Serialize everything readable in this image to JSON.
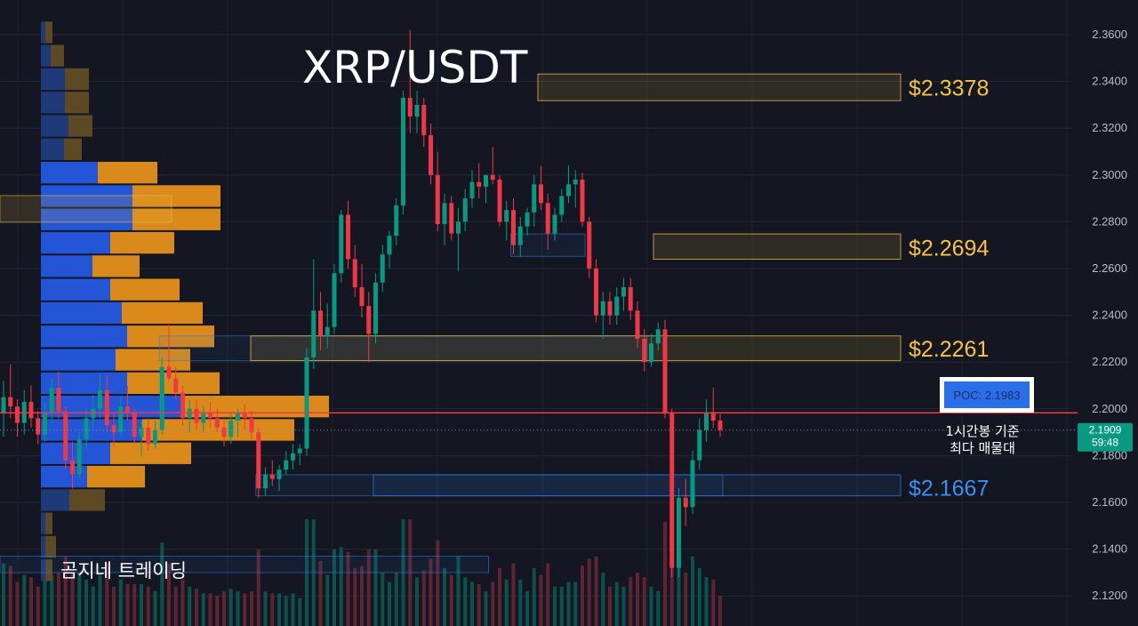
{
  "chart_data": {
    "type": "candlestick",
    "title": "XRP/USDT",
    "watermark": "곰지네 트레이딩",
    "y_axis": {
      "position": "right",
      "range": [
        2.11,
        2.37
      ],
      "ticks": [
        "2.3600",
        "2.3400",
        "2.3200",
        "2.3000",
        "2.2800",
        "2.2600",
        "2.2400",
        "2.2200",
        "2.2000",
        "2.1800",
        "2.1600",
        "2.1400",
        "2.1200"
      ]
    },
    "grid": true,
    "last_price": {
      "value": "2.1909",
      "countdown": "59:48",
      "color": "#089981"
    },
    "poc": {
      "label": "POC: 2.1983",
      "value": 2.1983,
      "note_line1": "1시간봉 기준",
      "note_line2": "최다 매물대",
      "line_color": "#f23645"
    },
    "levels": [
      {
        "label": "$2.3378",
        "value": 2.3378,
        "low": 2.3318,
        "high": 2.3432,
        "kind": "resistance",
        "color": "#f5c243"
      },
      {
        "label": "$2.2694",
        "value": 2.2694,
        "low": 2.264,
        "high": 2.2748,
        "kind": "resistance",
        "color": "#f5c243"
      },
      {
        "label": "$2.2261",
        "value": 2.2261,
        "low": 2.2206,
        "high": 2.2312,
        "kind": "resistance",
        "color": "#f5c243"
      },
      {
        "label": "$2.1667",
        "value": 2.1667,
        "low": 2.1628,
        "high": 2.1718,
        "kind": "support",
        "color": "#2f7de0"
      }
    ],
    "candle_colors": {
      "up": "#089981",
      "down": "#f23645"
    },
    "candles": [
      [
        2.198,
        2.212,
        2.188,
        2.205
      ],
      [
        2.205,
        2.219,
        2.196,
        2.201
      ],
      [
        2.201,
        2.204,
        2.188,
        2.194
      ],
      [
        2.194,
        2.208,
        2.189,
        2.203
      ],
      [
        2.203,
        2.21,
        2.192,
        2.196
      ],
      [
        2.196,
        2.199,
        2.185,
        2.189
      ],
      [
        2.189,
        2.203,
        2.186,
        2.198
      ],
      [
        2.198,
        2.213,
        2.194,
        2.209
      ],
      [
        2.209,
        2.216,
        2.196,
        2.199
      ],
      [
        2.199,
        2.201,
        2.174,
        2.178
      ],
      [
        2.178,
        2.186,
        2.166,
        2.172
      ],
      [
        2.172,
        2.19,
        2.17,
        2.187
      ],
      [
        2.187,
        2.2,
        2.183,
        2.196
      ],
      [
        2.196,
        2.206,
        2.192,
        2.2
      ],
      [
        2.2,
        2.215,
        2.196,
        2.208
      ],
      [
        2.208,
        2.214,
        2.19,
        2.193
      ],
      [
        2.193,
        2.198,
        2.184,
        2.19
      ],
      [
        2.19,
        2.205,
        2.188,
        2.201
      ],
      [
        2.201,
        2.21,
        2.195,
        2.198
      ],
      [
        2.198,
        2.2,
        2.185,
        2.188
      ],
      [
        2.188,
        2.195,
        2.18,
        2.192
      ],
      [
        2.192,
        2.196,
        2.182,
        2.185
      ],
      [
        2.185,
        2.195,
        2.183,
        2.191
      ],
      [
        2.191,
        2.222,
        2.189,
        2.218
      ],
      [
        2.218,
        2.236,
        2.212,
        2.213
      ],
      [
        2.213,
        2.218,
        2.204,
        2.207
      ],
      [
        2.207,
        2.21,
        2.193,
        2.196
      ],
      [
        2.196,
        2.204,
        2.19,
        2.2
      ],
      [
        2.2,
        2.204,
        2.191,
        2.194
      ],
      [
        2.194,
        2.201,
        2.19,
        2.198
      ],
      [
        2.198,
        2.203,
        2.192,
        2.196
      ],
      [
        2.196,
        2.2,
        2.19,
        2.192
      ],
      [
        2.192,
        2.196,
        2.184,
        2.188
      ],
      [
        2.188,
        2.198,
        2.185,
        2.195
      ],
      [
        2.195,
        2.2,
        2.188,
        2.198
      ],
      [
        2.198,
        2.202,
        2.191,
        2.196
      ],
      [
        2.196,
        2.199,
        2.187,
        2.19
      ],
      [
        2.19,
        2.192,
        2.162,
        2.166
      ],
      [
        2.166,
        2.175,
        2.163,
        2.172
      ],
      [
        2.172,
        2.178,
        2.167,
        2.17
      ],
      [
        2.17,
        2.176,
        2.165,
        2.174
      ],
      [
        2.174,
        2.182,
        2.172,
        2.178
      ],
      [
        2.178,
        2.185,
        2.174,
        2.181
      ],
      [
        2.181,
        2.185,
        2.176,
        2.183
      ],
      [
        2.183,
        2.226,
        2.18,
        2.222
      ],
      [
        2.222,
        2.264,
        2.217,
        2.242
      ],
      [
        2.242,
        2.25,
        2.225,
        2.231
      ],
      [
        2.231,
        2.245,
        2.226,
        2.235
      ],
      [
        2.235,
        2.262,
        2.232,
        2.258
      ],
      [
        2.258,
        2.285,
        2.254,
        2.283
      ],
      [
        2.283,
        2.289,
        2.26,
        2.264
      ],
      [
        2.264,
        2.27,
        2.248,
        2.252
      ],
      [
        2.252,
        2.262,
        2.239,
        2.244
      ],
      [
        2.244,
        2.25,
        2.22,
        2.232
      ],
      [
        2.232,
        2.258,
        2.228,
        2.254
      ],
      [
        2.254,
        2.27,
        2.25,
        2.266
      ],
      [
        2.266,
        2.276,
        2.26,
        2.274
      ],
      [
        2.274,
        2.29,
        2.27,
        2.287
      ],
      [
        2.287,
        2.336,
        2.283,
        2.333
      ],
      [
        2.333,
        2.362,
        2.318,
        2.325
      ],
      [
        2.325,
        2.336,
        2.318,
        2.33
      ],
      [
        2.33,
        2.333,
        2.312,
        2.317
      ],
      [
        2.317,
        2.322,
        2.296,
        2.3
      ],
      [
        2.3,
        2.31,
        2.276,
        2.279
      ],
      [
        2.279,
        2.292,
        2.27,
        2.288
      ],
      [
        2.288,
        2.291,
        2.272,
        2.275
      ],
      [
        2.275,
        2.286,
        2.259,
        2.28
      ],
      [
        2.28,
        2.294,
        2.276,
        2.29
      ],
      [
        2.29,
        2.302,
        2.286,
        2.297
      ],
      [
        2.297,
        2.305,
        2.29,
        2.295
      ],
      [
        2.295,
        2.3,
        2.288,
        2.3
      ],
      [
        2.3,
        2.312,
        2.296,
        2.298
      ],
      [
        2.298,
        2.3,
        2.278,
        2.28
      ],
      [
        2.28,
        2.289,
        2.272,
        2.285
      ],
      [
        2.285,
        2.29,
        2.266,
        2.27
      ],
      [
        2.27,
        2.282,
        2.265,
        2.278
      ],
      [
        2.278,
        2.286,
        2.274,
        2.284
      ],
      [
        2.284,
        2.3,
        2.278,
        2.296
      ],
      [
        2.296,
        2.304,
        2.285,
        2.288
      ],
      [
        2.288,
        2.292,
        2.268,
        2.275
      ],
      [
        2.275,
        2.286,
        2.272,
        2.283
      ],
      [
        2.283,
        2.294,
        2.28,
        2.291
      ],
      [
        2.291,
        2.304,
        2.288,
        2.296
      ],
      [
        2.296,
        2.302,
        2.286,
        2.298
      ],
      [
        2.298,
        2.301,
        2.278,
        2.28
      ],
      [
        2.28,
        2.282,
        2.256,
        2.26
      ],
      [
        2.26,
        2.264,
        2.237,
        2.24
      ],
      [
        2.24,
        2.25,
        2.23,
        2.246
      ],
      [
        2.246,
        2.25,
        2.236,
        2.24
      ],
      [
        2.24,
        2.252,
        2.236,
        2.248
      ],
      [
        2.248,
        2.256,
        2.242,
        2.252
      ],
      [
        2.252,
        2.256,
        2.238,
        2.242
      ],
      [
        2.242,
        2.246,
        2.226,
        2.23
      ],
      [
        2.23,
        2.234,
        2.216,
        2.22
      ],
      [
        2.22,
        2.232,
        2.218,
        2.228
      ],
      [
        2.228,
        2.237,
        2.225,
        2.234
      ],
      [
        2.234,
        2.238,
        2.196,
        2.198
      ],
      [
        2.198,
        2.2,
        2.128,
        2.132
      ],
      [
        2.132,
        2.166,
        2.128,
        2.162
      ],
      [
        2.162,
        2.17,
        2.15,
        2.158
      ],
      [
        2.158,
        2.182,
        2.155,
        2.178
      ],
      [
        2.178,
        2.196,
        2.174,
        2.191
      ],
      [
        2.191,
        2.204,
        2.186,
        2.198
      ],
      [
        2.198,
        2.209,
        2.192,
        2.195
      ],
      [
        2.195,
        2.198,
        2.188,
        2.191
      ]
    ],
    "volume_profile": [
      {
        "low": 2.356,
        "high": 2.366,
        "up": 5,
        "down": 8
      },
      {
        "low": 2.346,
        "high": 2.356,
        "up": 11,
        "down": 15
      },
      {
        "low": 2.336,
        "high": 2.346,
        "up": 27,
        "down": 27
      },
      {
        "low": 2.326,
        "high": 2.336,
        "up": 27,
        "down": 27
      },
      {
        "low": 2.316,
        "high": 2.326,
        "up": 31,
        "down": 27
      },
      {
        "low": 2.306,
        "high": 2.316,
        "up": 26,
        "down": 20
      },
      {
        "low": 2.296,
        "high": 2.306,
        "up": 64,
        "down": 67
      },
      {
        "low": 2.286,
        "high": 2.296,
        "up": 103,
        "down": 99
      },
      {
        "low": 2.276,
        "high": 2.286,
        "up": 103,
        "down": 99
      },
      {
        "low": 2.266,
        "high": 2.276,
        "up": 78,
        "down": 72
      },
      {
        "low": 2.256,
        "high": 2.266,
        "up": 58,
        "down": 53
      },
      {
        "low": 2.246,
        "high": 2.256,
        "up": 78,
        "down": 78
      },
      {
        "low": 2.236,
        "high": 2.246,
        "up": 91,
        "down": 91
      },
      {
        "low": 2.226,
        "high": 2.236,
        "up": 97,
        "down": 98
      },
      {
        "low": 2.216,
        "high": 2.226,
        "up": 84,
        "down": 84
      },
      {
        "low": 2.206,
        "high": 2.216,
        "up": 97,
        "down": 104
      },
      {
        "low": 2.196,
        "high": 2.206,
        "up": 162,
        "down": 162
      },
      {
        "low": 2.186,
        "high": 2.196,
        "up": 114,
        "down": 171
      },
      {
        "low": 2.176,
        "high": 2.186,
        "up": 78,
        "down": 91
      },
      {
        "low": 2.166,
        "high": 2.176,
        "up": 52,
        "down": 65
      },
      {
        "low": 2.156,
        "high": 2.166,
        "up": 32,
        "down": 40
      },
      {
        "low": 2.146,
        "high": 2.156,
        "up": 5,
        "down": 8
      },
      {
        "low": 2.136,
        "high": 2.146,
        "up": 5,
        "down": 12
      },
      {
        "low": 2.126,
        "high": 2.136,
        "up": 5,
        "down": 8
      }
    ],
    "value_area_zones": [
      {
        "low": 2.2798,
        "high": 2.2912,
        "extends_to": "candle 24"
      }
    ],
    "ranges": [
      {
        "low": 2.2798,
        "high": 2.2912,
        "from": 0,
        "to": 24,
        "color": "#f5c243"
      },
      {
        "low": 2.2206,
        "high": 2.2312,
        "from": 23,
        "to": 93,
        "color": "#2f7de0"
      },
      {
        "low": 2.2652,
        "high": 2.2748,
        "from": 74,
        "to": 84,
        "color": "#2f7de0"
      },
      {
        "low": 2.1628,
        "high": 2.1718,
        "from": 37,
        "to": 104,
        "color": "#2f7de0"
      },
      {
        "low": 2.13,
        "high": 2.137,
        "from": 0,
        "to": 70,
        "color": "#2f7de0"
      }
    ]
  }
}
